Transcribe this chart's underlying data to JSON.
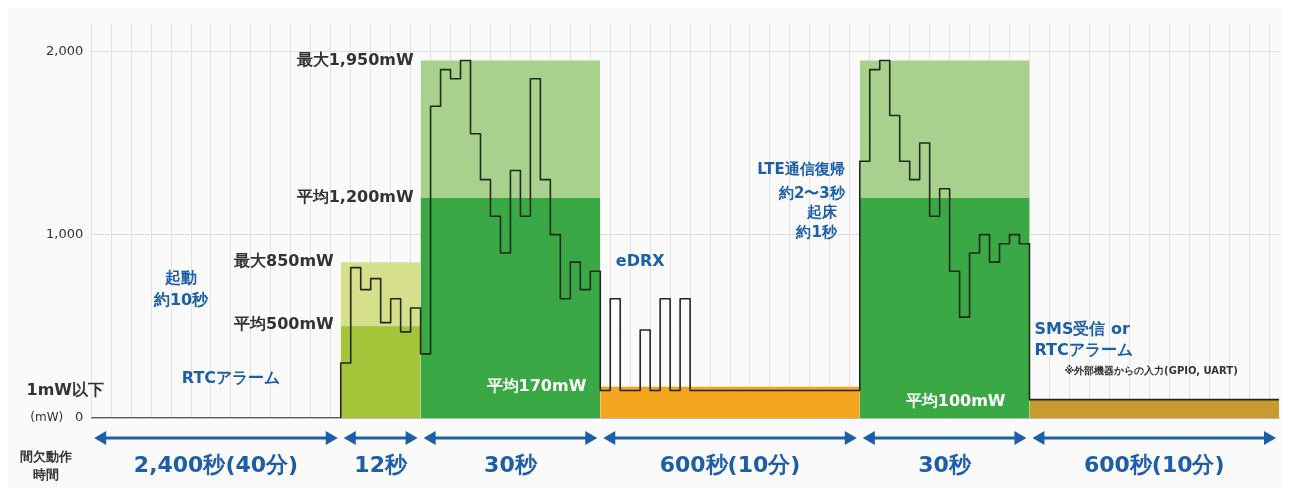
{
  "chart_data": {
    "type": "step",
    "xlabel": "間欠動作時間",
    "ylabel": "(mW)",
    "categories": [
      null,
      null,
      null,
      null,
      null,
      null,
      null,
      null,
      null,
      null,
      null,
      null,
      null,
      null,
      null,
      null,
      null,
      null,
      null,
      null,
      null,
      null,
      null,
      null,
      null,
      null,
      null,
      null,
      null,
      null,
      null,
      null,
      null,
      null,
      null,
      null,
      null,
      null,
      null,
      null,
      null,
      null,
      null,
      null,
      null,
      null,
      null,
      null,
      null,
      null,
      null,
      null,
      null,
      null,
      null,
      null,
      null,
      null,
      null,
      null,
      null,
      null,
      null,
      null,
      null,
      null,
      null,
      null,
      null,
      null,
      null,
      null,
      null,
      null,
      null,
      null,
      null,
      null,
      null,
      null,
      null,
      null,
      null,
      null,
      null,
      null,
      null,
      null,
      null,
      null,
      null,
      null,
      null,
      null,
      null,
      null,
      null,
      null,
      null,
      null,
      null,
      null,
      null,
      null,
      null,
      null,
      null,
      null,
      null,
      null,
      null,
      null,
      null,
      null,
      null,
      null,
      null,
      null,
      null,
      null
    ],
    "ylim": [
      0,
      2150
    ],
    "yticks": [
      0,
      {
        "value": 1000,
        "label": "1,000"
      },
      {
        "value": 2000,
        "label": "2,000"
      }
    ],
    "tick_labels": "y",
    "grid": true,
    "series": [
      {
        "type": "area",
        "color": "#d6e08c",
        "values": [
          null,
          null,
          null,
          null,
          null,
          null,
          null,
          null,
          null,
          null,
          null,
          null,
          null,
          null,
          null,
          null,
          null,
          null,
          null,
          null,
          null,
          null,
          null,
          null,
          null,
          850,
          850,
          850,
          850,
          850,
          850,
          850,
          850,
          850,
          null,
          null,
          null,
          null,
          null,
          null,
          null,
          null,
          null,
          null,
          null,
          null,
          null,
          null,
          null,
          null,
          null,
          null,
          null,
          null,
          null,
          null,
          null,
          null,
          null,
          null,
          null,
          null,
          null,
          null,
          null,
          null,
          null,
          null,
          null,
          null,
          null,
          null,
          null,
          null,
          null,
          null,
          null,
          null,
          null,
          null,
          null,
          null,
          null,
          null,
          null,
          null,
          null,
          null,
          null,
          null,
          null,
          null,
          null,
          null,
          null,
          null,
          null,
          null,
          null,
          null,
          null,
          null,
          null,
          null,
          null,
          null,
          null,
          null,
          null,
          null,
          null,
          null,
          null,
          null,
          null,
          null,
          null,
          null,
          null,
          null
        ]
      },
      {
        "type": "area",
        "color": "#a5c43a",
        "values": [
          null,
          null,
          null,
          null,
          null,
          null,
          null,
          null,
          null,
          null,
          null,
          null,
          null,
          null,
          null,
          null,
          null,
          null,
          null,
          null,
          null,
          null,
          null,
          null,
          null,
          500,
          500,
          500,
          500,
          500,
          500,
          500,
          500,
          500,
          null,
          null,
          null,
          null,
          null,
          null,
          null,
          null,
          null,
          null,
          null,
          null,
          null,
          null,
          null,
          null,
          null,
          null,
          null,
          null,
          null,
          null,
          null,
          null,
          null,
          null,
          null,
          null,
          null,
          null,
          null,
          null,
          null,
          null,
          null,
          null,
          null,
          null,
          null,
          null,
          null,
          null,
          null,
          null,
          null,
          null,
          null,
          null,
          null,
          null,
          null,
          null,
          null,
          null,
          null,
          null,
          null,
          null,
          null,
          null,
          null,
          null,
          null,
          null,
          null,
          null,
          null,
          null,
          null,
          null,
          null,
          null,
          null,
          null,
          null,
          null,
          null,
          null,
          null,
          null,
          null,
          null,
          null,
          null,
          null,
          null
        ]
      },
      {
        "type": "area",
        "color": "#a9d18e",
        "values": [
          null,
          null,
          null,
          null,
          null,
          null,
          null,
          null,
          null,
          null,
          null,
          null,
          null,
          null,
          null,
          null,
          null,
          null,
          null,
          null,
          null,
          null,
          null,
          null,
          null,
          null,
          null,
          null,
          null,
          null,
          null,
          null,
          null,
          1950,
          1950,
          1950,
          1950,
          1950,
          1950,
          1950,
          1950,
          1950,
          1950,
          1950,
          1950,
          1950,
          1950,
          1950,
          1950,
          1950,
          1950,
          1950,
          null,
          null,
          null,
          null,
          null,
          null,
          null,
          null,
          null,
          null,
          null,
          null,
          null,
          null,
          null,
          null,
          null,
          null,
          null,
          null,
          null,
          null,
          null,
          null,
          null,
          null,
          null,
          null,
          null,
          null,
          null,
          null,
          null,
          null,
          null,
          null,
          null,
          null,
          null,
          null,
          null,
          null,
          null,
          null,
          null,
          null,
          null,
          null,
          null,
          null,
          null,
          null,
          null,
          null,
          null,
          null,
          null,
          null,
          null,
          null,
          null,
          null,
          null,
          null,
          null,
          null,
          null,
          null
        ]
      },
      {
        "type": "area",
        "color": "#3aa845",
        "values": [
          null,
          null,
          null,
          null,
          null,
          null,
          null,
          null,
          null,
          null,
          null,
          null,
          null,
          null,
          null,
          null,
          null,
          null,
          null,
          null,
          null,
          null,
          null,
          null,
          null,
          null,
          null,
          null,
          null,
          null,
          null,
          null,
          null,
          1200,
          1200,
          1200,
          1200,
          1200,
          1200,
          1200,
          1200,
          1200,
          1200,
          1200,
          1200,
          1200,
          1200,
          1200,
          1200,
          1200,
          1200,
          1200,
          null,
          null,
          null,
          null,
          null,
          null,
          null,
          null,
          null,
          null,
          null,
          null,
          null,
          null,
          null,
          null,
          null,
          null,
          null,
          null,
          null,
          null,
          null,
          null,
          null,
          null,
          null,
          null,
          null,
          null,
          null,
          null,
          null,
          null,
          null,
          null,
          null,
          null,
          null,
          null,
          null,
          null,
          null,
          null,
          null,
          null,
          null,
          null,
          null,
          null,
          null,
          null,
          null,
          null,
          null,
          null,
          null,
          null,
          null,
          null,
          null,
          null,
          null,
          null,
          null,
          null,
          null,
          null
        ]
      },
      {
        "type": "area",
        "color": "#f2a51d",
        "values": [
          null,
          null,
          null,
          null,
          null,
          null,
          null,
          null,
          null,
          null,
          null,
          null,
          null,
          null,
          null,
          null,
          null,
          null,
          null,
          null,
          null,
          null,
          null,
          null,
          null,
          null,
          null,
          null,
          null,
          null,
          null,
          null,
          null,
          null,
          null,
          null,
          null,
          null,
          null,
          null,
          null,
          null,
          null,
          null,
          null,
          null,
          null,
          null,
          null,
          null,
          null,
          170,
          170,
          170,
          170,
          170,
          170,
          170,
          170,
          170,
          170,
          170,
          170,
          170,
          170,
          170,
          170,
          170,
          170,
          170,
          170,
          170,
          170,
          170,
          170,
          170,
          170,
          170,
          null,
          null,
          null,
          null,
          null,
          null,
          null,
          null,
          null,
          null,
          null,
          null,
          null,
          null,
          null,
          null,
          null,
          null,
          null,
          null,
          null,
          null,
          null,
          null,
          null,
          null,
          null,
          null,
          null,
          null,
          null,
          null,
          null,
          null,
          null,
          null,
          null,
          null,
          null,
          null,
          null,
          null
        ]
      },
      {
        "type": "area",
        "color": "#a9d18e",
        "values": [
          null,
          null,
          null,
          null,
          null,
          null,
          null,
          null,
          null,
          null,
          null,
          null,
          null,
          null,
          null,
          null,
          null,
          null,
          null,
          null,
          null,
          null,
          null,
          null,
          null,
          null,
          null,
          null,
          null,
          null,
          null,
          null,
          null,
          null,
          null,
          null,
          null,
          null,
          null,
          null,
          null,
          null,
          null,
          null,
          null,
          null,
          null,
          null,
          null,
          null,
          null,
          null,
          null,
          null,
          null,
          null,
          null,
          null,
          null,
          null,
          null,
          null,
          null,
          null,
          null,
          null,
          null,
          null,
          null,
          null,
          null,
          null,
          null,
          null,
          null,
          null,
          null,
          1950,
          1950,
          1950,
          1950,
          1950,
          1950,
          1950,
          1950,
          1950,
          1950,
          1950,
          1950,
          1950,
          1950,
          1950,
          1950,
          1950,
          1950,
          null,
          null,
          null,
          null,
          null,
          null,
          null,
          null,
          null,
          null,
          null,
          null,
          null,
          null,
          null,
          null,
          null,
          null,
          null,
          null,
          null,
          null,
          null,
          null,
          null
        ]
      },
      {
        "type": "area",
        "color": "#3aa845",
        "values": [
          null,
          null,
          null,
          null,
          null,
          null,
          null,
          null,
          null,
          null,
          null,
          null,
          null,
          null,
          null,
          null,
          null,
          null,
          null,
          null,
          null,
          null,
          null,
          null,
          null,
          null,
          null,
          null,
          null,
          null,
          null,
          null,
          null,
          null,
          null,
          null,
          null,
          null,
          null,
          null,
          null,
          null,
          null,
          null,
          null,
          null,
          null,
          null,
          null,
          null,
          null,
          null,
          null,
          null,
          null,
          null,
          null,
          null,
          null,
          null,
          null,
          null,
          null,
          null,
          null,
          null,
          null,
          null,
          null,
          null,
          null,
          null,
          null,
          null,
          null,
          null,
          null,
          1200,
          1200,
          1200,
          1200,
          1200,
          1200,
          1200,
          1200,
          1200,
          1200,
          1200,
          1200,
          1200,
          1200,
          1200,
          1200,
          1200,
          1200,
          null,
          null,
          null,
          null,
          null,
          null,
          null,
          null,
          null,
          null,
          null,
          null,
          null,
          null,
          null,
          null,
          null,
          null,
          null,
          null,
          null,
          null,
          null,
          null,
          null
        ]
      },
      {
        "type": "area",
        "color": "#c99a2e",
        "values": [
          null,
          null,
          null,
          null,
          null,
          null,
          null,
          null,
          null,
          null,
          null,
          null,
          null,
          null,
          null,
          null,
          null,
          null,
          null,
          null,
          null,
          null,
          null,
          null,
          null,
          null,
          null,
          null,
          null,
          null,
          null,
          null,
          null,
          null,
          null,
          null,
          null,
          null,
          null,
          null,
          null,
          null,
          null,
          null,
          null,
          null,
          null,
          null,
          null,
          null,
          null,
          null,
          null,
          null,
          null,
          null,
          null,
          null,
          null,
          null,
          null,
          null,
          null,
          null,
          null,
          null,
          null,
          null,
          null,
          null,
          null,
          null,
          null,
          null,
          null,
          null,
          null,
          null,
          null,
          null,
          null,
          null,
          null,
          null,
          null,
          null,
          null,
          null,
          null,
          null,
          null,
          null,
          null,
          null,
          100,
          100,
          100,
          100,
          100,
          100,
          100,
          100,
          100,
          100,
          100,
          100,
          100,
          100,
          100,
          100,
          100,
          100,
          100,
          100,
          100,
          100,
          100,
          100,
          100,
          100
        ]
      },
      {
        "color": "#1e2a1e",
        "values": [
          0,
          0,
          0,
          0,
          0,
          0,
          0,
          0,
          0,
          0,
          0,
          0,
          0,
          0,
          0,
          0,
          0,
          0,
          0,
          0,
          0,
          0,
          0,
          0,
          0,
          300,
          820,
          700,
          760,
          520,
          650,
          470,
          600,
          350,
          1700,
          1900,
          1850,
          1950,
          1550,
          1300,
          1100,
          900,
          1350,
          1100,
          1850,
          1300,
          1000,
          650,
          850,
          700,
          800,
          150,
          650,
          150,
          150,
          480,
          150,
          650,
          150,
          650,
          150,
          150,
          150,
          150,
          150,
          150,
          150,
          150,
          150,
          150,
          150,
          150,
          150,
          150,
          150,
          150,
          150,
          1400,
          1900,
          1950,
          1650,
          1400,
          1300,
          1500,
          1100,
          1250,
          800,
          550,
          900,
          1000,
          850,
          950,
          1000,
          950,
          100,
          100,
          100,
          100,
          100,
          100,
          100,
          100,
          100,
          100,
          100,
          100,
          100,
          100,
          100,
          100,
          100,
          100,
          100,
          100,
          100,
          100,
          100,
          100,
          100,
          100
        ]
      }
    ],
    "annotations": [
      "最大1,950mW",
      "平均1,200mW",
      "最大850mW",
      "平均500mW",
      "起動",
      "約10秒",
      "1mW以下",
      "RTCアラーム",
      "eDRX",
      "平均170mW",
      "LTE通信復帰",
      "約2〜3秒",
      "起床",
      "約1秒",
      "平均100mW",
      "SMS受信 or",
      "RTCアラーム",
      "※外部機器からの入力(GPIO, UART)",
      "2,400秒(40分)",
      "12秒",
      "30秒",
      "600秒(10分)",
      "30秒",
      "600秒(10分)"
    ]
  }
}
